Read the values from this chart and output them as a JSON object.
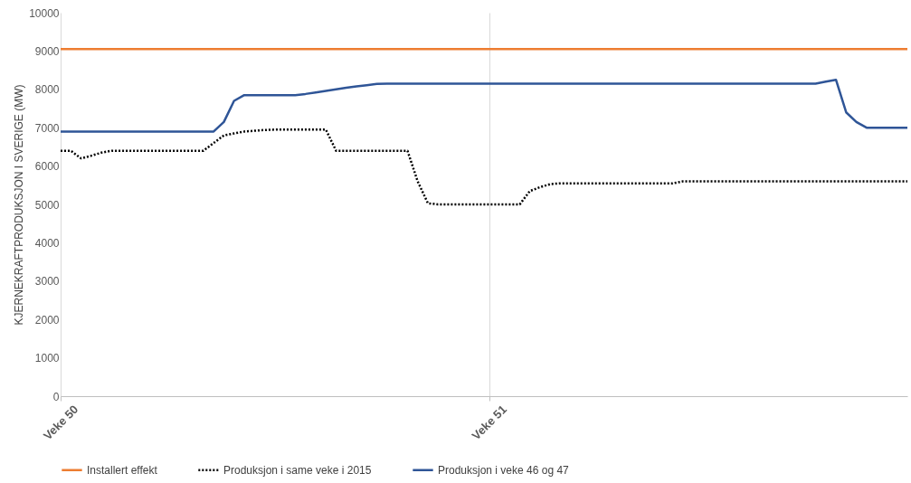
{
  "chart_data": {
    "type": "line",
    "ylabel": "KJERNEKRAFTPRODUKSJON I SVERIGE (MW)",
    "categories": [
      "Veke 50",
      null,
      null,
      null,
      null,
      null,
      null,
      null,
      null,
      null,
      null,
      null,
      null,
      null,
      null,
      null,
      null,
      null,
      null,
      null,
      null,
      null,
      null,
      null,
      null,
      null,
      null,
      null,
      null,
      null,
      null,
      null,
      null,
      null,
      null,
      null,
      null,
      null,
      null,
      null,
      null,
      null,
      "Veke 51",
      null,
      null,
      null,
      null,
      null,
      null,
      null,
      null,
      null,
      null,
      null,
      null,
      null,
      null,
      null,
      null,
      null,
      null,
      null,
      null,
      null,
      null,
      null,
      null,
      null,
      null,
      null,
      null,
      null,
      null,
      null,
      null,
      null,
      null,
      null,
      null,
      null,
      null,
      null,
      null,
      null
    ],
    "ylim": [
      0,
      10000
    ],
    "yticks": [
      0,
      1000,
      2000,
      3000,
      4000,
      5000,
      6000,
      7000,
      8000,
      9000,
      10000
    ],
    "grid": "x",
    "legend": "bottom",
    "marker": "none",
    "series": [
      {
        "name": "Installert effekt",
        "color": "#ed7d31",
        "line_style": "solid",
        "values": [
          9050,
          9050,
          9050,
          9050,
          9050,
          9050,
          9050,
          9050,
          9050,
          9050,
          9050,
          9050,
          9050,
          9050,
          9050,
          9050,
          9050,
          9050,
          9050,
          9050,
          9050,
          9050,
          9050,
          9050,
          9050,
          9050,
          9050,
          9050,
          9050,
          9050,
          9050,
          9050,
          9050,
          9050,
          9050,
          9050,
          9050,
          9050,
          9050,
          9050,
          9050,
          9050,
          9050,
          9050,
          9050,
          9050,
          9050,
          9050,
          9050,
          9050,
          9050,
          9050,
          9050,
          9050,
          9050,
          9050,
          9050,
          9050,
          9050,
          9050,
          9050,
          9050,
          9050,
          9050,
          9050,
          9050,
          9050,
          9050,
          9050,
          9050,
          9050,
          9050,
          9050,
          9050,
          9050,
          9050,
          9050,
          9050,
          9050,
          9050,
          9050,
          9050,
          9050,
          9050
        ]
      },
      {
        "name": "Produksjon i same veke i 2015",
        "color": "#000000",
        "line_style": "dotted",
        "values": [
          6400,
          6400,
          6200,
          6270,
          6350,
          6400,
          6400,
          6400,
          6400,
          6400,
          6400,
          6400,
          6400,
          6400,
          6400,
          6600,
          6800,
          6850,
          6900,
          6920,
          6940,
          6950,
          6950,
          6950,
          6950,
          6950,
          6950,
          6400,
          6400,
          6400,
          6400,
          6400,
          6400,
          6400,
          6400,
          5600,
          5030,
          5000,
          5000,
          5000,
          5000,
          5000,
          5000,
          5000,
          5000,
          5000,
          5350,
          5450,
          5530,
          5550,
          5550,
          5550,
          5550,
          5550,
          5550,
          5550,
          5550,
          5550,
          5550,
          5550,
          5550,
          5600,
          5600,
          5600,
          5600,
          5600,
          5600,
          5600,
          5600,
          5600,
          5600,
          5600,
          5600,
          5600,
          5600,
          5600,
          5600,
          5600,
          5600,
          5600,
          5600,
          5600,
          5600,
          5600
        ]
      },
      {
        "name": "Produksjon i veke 46 og 47",
        "color": "#2f5597",
        "line_style": "solid",
        "values": [
          6900,
          6900,
          6900,
          6900,
          6900,
          6900,
          6900,
          6900,
          6900,
          6900,
          6900,
          6900,
          6900,
          6900,
          6900,
          6900,
          7150,
          7700,
          7850,
          7850,
          7850,
          7850,
          7850,
          7850,
          7880,
          7920,
          7960,
          8000,
          8040,
          8080,
          8110,
          8140,
          8150,
          8150,
          8150,
          8150,
          8150,
          8150,
          8150,
          8150,
          8150,
          8150,
          8150,
          8150,
          8150,
          8150,
          8150,
          8150,
          8150,
          8150,
          8150,
          8150,
          8150,
          8150,
          8150,
          8150,
          8150,
          8150,
          8150,
          8150,
          8150,
          8150,
          8150,
          8150,
          8150,
          8150,
          8150,
          8150,
          8150,
          8150,
          8150,
          8150,
          8150,
          8150,
          8150,
          8200,
          8250,
          7400,
          7150,
          7000,
          7000,
          7000,
          7000,
          7000
        ]
      }
    ]
  }
}
